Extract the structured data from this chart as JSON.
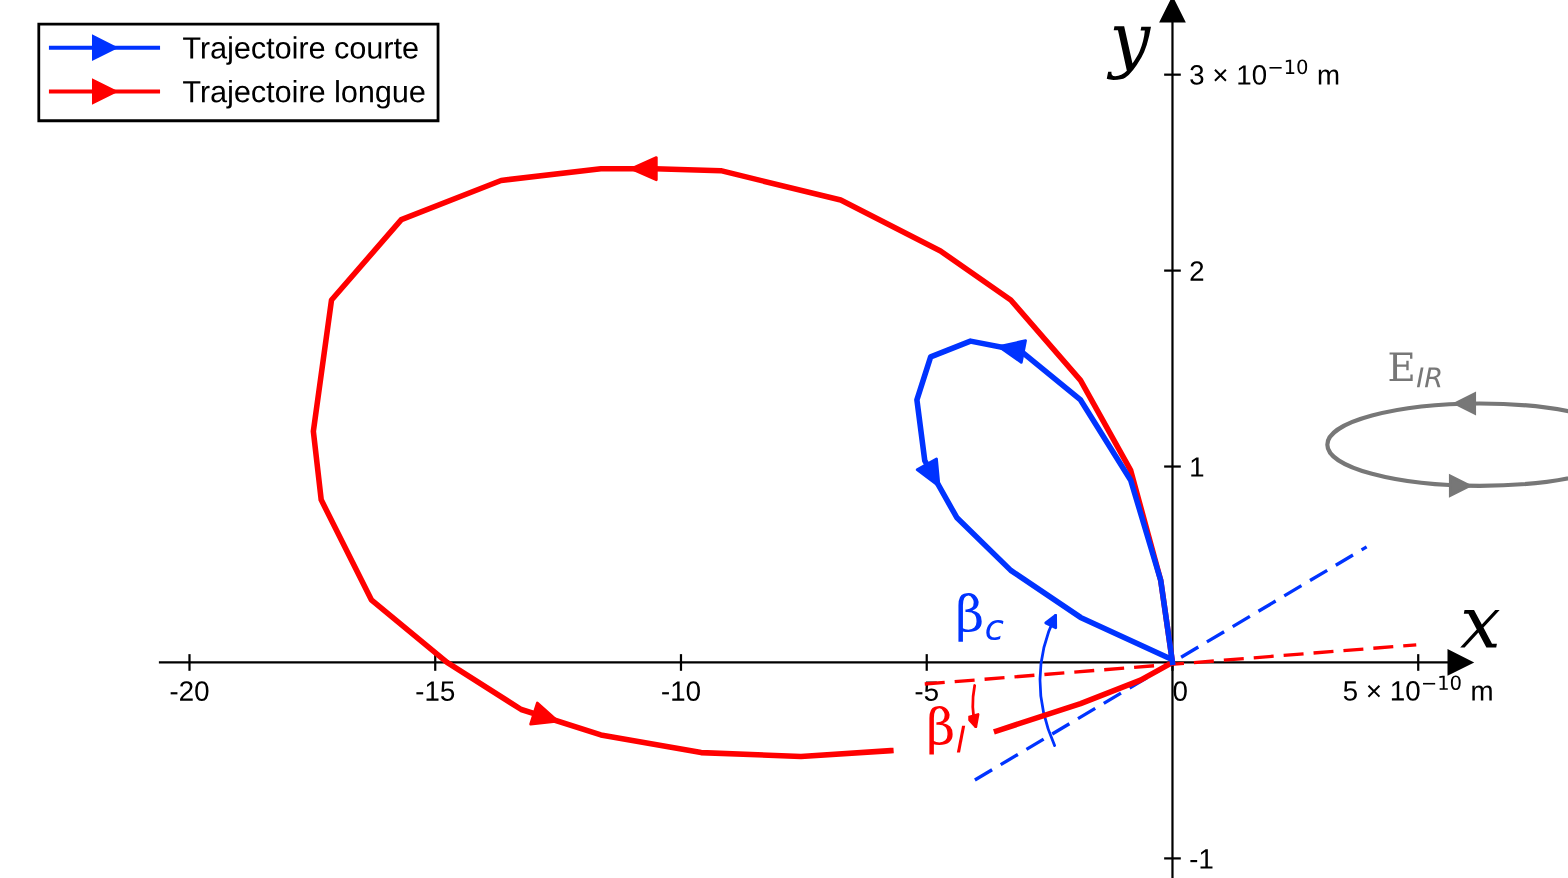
{
  "chart_data": {
    "type": "line",
    "xlabel": "x",
    "ylabel": "y",
    "legend": "top left",
    "grid": false,
    "xlim": [
      -20.6,
      5.85
    ],
    "ylim": [
      -1.1,
      3.33
    ],
    "xticks": [
      -20,
      -15,
      -10,
      -5,
      0,
      {
        "value": 5,
        "label": "5 × 10$^{−10}$ m"
      }
    ],
    "yticks": [
      -1,
      1,
      2,
      {
        "value": 3,
        "label": "3 × 10$^{−10}$ m"
      }
    ],
    "series": [
      {
        "name": "Trajectoire courte",
        "color": "#0033ff",
        "x": [
          0,
          -0.24,
          -0.85,
          -1.87,
          -3.09,
          -4.11,
          -4.92,
          -5.2,
          -5.04,
          -4.39,
          -3.29,
          -1.87,
          -0.05
        ],
        "values": [
          0,
          0.42,
          0.93,
          1.34,
          1.59,
          1.64,
          1.56,
          1.34,
          1.03,
          0.74,
          0.47,
          0.23,
          0.02
        ]
      },
      {
        "name": "Trajectoire longue",
        "color": "#ff0000",
        "x": [
          0,
          -0.24,
          -0.85,
          -1.87,
          -3.29,
          -4.72,
          -6.75,
          -9.19,
          -10.53,
          -11.63,
          -13.66,
          -15.69,
          -17.11,
          -17.48,
          -17.32,
          -16.3,
          -14.76,
          -13.25,
          -11.63,
          -9.59,
          -7.56,
          -5.73,
          -4.6,
          -3.58,
          -1.87,
          -0.65,
          0
        ],
        "values": [
          0,
          0.42,
          0.98,
          1.44,
          1.85,
          2.1,
          2.36,
          2.51,
          2.52,
          2.52,
          2.46,
          2.26,
          1.85,
          1.18,
          0.83,
          0.32,
          0,
          -0.24,
          -0.37,
          -0.46,
          -0.48,
          -0.45,
          null,
          -0.35,
          -0.21,
          -0.09,
          0
        ]
      },
      {
        "color": "#0033ff",
        "line_style": "dashed",
        "x": [
          -4.02,
          3.95
        ],
        "values": [
          -0.6,
          0.59
        ]
      },
      {
        "color": "#ff0000",
        "line_style": "dashed",
        "x": [
          -5.04,
          4.96
        ],
        "values": [
          -0.11,
          0.09
        ]
      }
    ],
    "annotations": [
      "β$_{c}$",
      "β$_{l}$",
      "E$_{IR}$"
    ]
  }
}
